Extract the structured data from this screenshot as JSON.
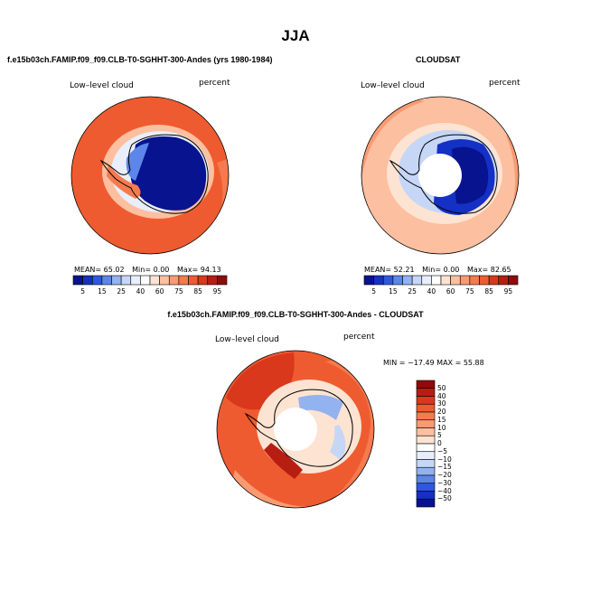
{
  "figure": {
    "title": "JJA"
  },
  "colors": {
    "warm": [
      "#fde3d2",
      "#fcbfa0",
      "#fb9a72",
      "#f57a4e",
      "#ef5b30",
      "#d9381d",
      "#b81d12",
      "#8f0b0b"
    ],
    "cool": [
      "#e8eefb",
      "#c6d6f6",
      "#93b2f0",
      "#5d86ea",
      "#2f58e0",
      "#1530c4",
      "#07138f"
    ],
    "coastline": "#000000"
  },
  "chart_data": [
    {
      "type": "heatmap",
      "projection": "south-polar-stereographic",
      "title": "f.e15b03ch.FAMIP.f09_f09.CLB-T0-SGHHT-300-Andes (yrs 1980-1984)",
      "left_label": "Low–level cloud",
      "right_label": "percent",
      "stats": {
        "mean_label": "MEAN=",
        "mean": "65.02",
        "min_label": "Min=",
        "min": "0.00",
        "max_label": "Max=",
        "max": "94.13"
      },
      "colorbar": {
        "orientation": "horizontal",
        "levels": [
          5,
          10,
          15,
          20,
          25,
          30,
          40,
          50,
          60,
          70,
          75,
          80,
          85,
          90,
          95
        ],
        "tick_labels": [
          "5",
          "15",
          "25",
          "40",
          "60",
          "75",
          "85",
          "95"
        ]
      }
    },
    {
      "type": "heatmap",
      "projection": "south-polar-stereographic",
      "title": "CLOUDSAT",
      "left_label": "Low–level cloud",
      "right_label": "percent",
      "stats": {
        "mean_label": "MEAN=",
        "mean": "52.21",
        "min_label": "Min=",
        "min": "0.00",
        "max_label": "Max=",
        "max": "82.65"
      },
      "colorbar": {
        "orientation": "horizontal",
        "levels": [
          5,
          10,
          15,
          20,
          25,
          30,
          40,
          50,
          60,
          70,
          75,
          80,
          85,
          90,
          95
        ],
        "tick_labels": [
          "5",
          "15",
          "25",
          "40",
          "60",
          "75",
          "85",
          "95"
        ]
      }
    },
    {
      "type": "heatmap",
      "projection": "south-polar-stereographic",
      "title": "f.e15b03ch.FAMIP.f09_f09.CLB-T0-SGHHT-300-Andes - CLOUDSAT",
      "left_label": "Low–level cloud",
      "right_label": "percent",
      "stats_text": "MIN = −17.49 MAX =  55.88",
      "colorbar": {
        "orientation": "vertical",
        "levels": [
          50,
          40,
          30,
          20,
          15,
          10,
          5,
          0,
          -5,
          -10,
          -15,
          -20,
          -30,
          -40,
          -50
        ],
        "tick_labels": [
          "50",
          "40",
          "30",
          "20",
          "15",
          "10",
          "5",
          "0",
          "−5",
          "−10",
          "−15",
          "−20",
          "−30",
          "−40",
          "−50"
        ]
      }
    }
  ]
}
